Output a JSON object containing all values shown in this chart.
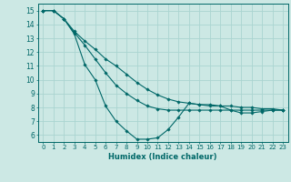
{
  "xlabel": "Humidex (Indice chaleur)",
  "background_color": "#cce8e4",
  "grid_color": "#aad4d0",
  "line_color": "#006868",
  "xlim": [
    -0.5,
    23.5
  ],
  "ylim": [
    5.5,
    15.5
  ],
  "yticks": [
    6,
    7,
    8,
    9,
    10,
    11,
    12,
    13,
    14,
    15
  ],
  "xticks": [
    0,
    1,
    2,
    3,
    4,
    5,
    6,
    7,
    8,
    9,
    10,
    11,
    12,
    13,
    14,
    15,
    16,
    17,
    18,
    19,
    20,
    21,
    22,
    23
  ],
  "xtick_labels": [
    "0",
    "1",
    "2",
    "3",
    "4",
    "5",
    "6",
    "7",
    "8",
    "9",
    "10",
    "11",
    "12",
    "13",
    "14",
    "15",
    "16",
    "17",
    "18",
    "19",
    "20",
    "21",
    "22",
    "23"
  ],
  "series": [
    {
      "x": [
        0,
        1,
        2,
        3,
        4,
        5,
        6,
        7,
        8,
        9,
        10,
        11,
        12,
        13,
        14,
        15,
        16,
        17,
        18,
        19,
        20,
        21,
        22,
        23
      ],
      "y": [
        15,
        15,
        14.4,
        13.5,
        12.8,
        12.2,
        11.5,
        11.0,
        10.4,
        9.8,
        9.3,
        8.9,
        8.6,
        8.4,
        8.3,
        8.2,
        8.2,
        8.1,
        8.1,
        8.0,
        8.0,
        7.9,
        7.9,
        7.8
      ]
    },
    {
      "x": [
        0,
        1,
        2,
        3,
        4,
        5,
        6,
        7,
        8,
        9,
        10,
        11,
        12,
        13,
        14,
        15,
        16,
        17,
        18,
        19,
        20,
        21,
        22,
        23
      ],
      "y": [
        15,
        15,
        14.4,
        13.4,
        12.5,
        11.5,
        10.5,
        9.6,
        9.0,
        8.5,
        8.1,
        7.9,
        7.8,
        7.8,
        7.8,
        7.8,
        7.8,
        7.8,
        7.8,
        7.8,
        7.8,
        7.8,
        7.8,
        7.8
      ]
    },
    {
      "x": [
        0,
        1,
        2,
        3,
        4,
        5,
        6,
        7,
        8,
        9,
        10,
        11,
        12,
        13,
        14,
        15,
        16,
        17,
        18,
        19,
        20,
        21,
        22,
        23
      ],
      "y": [
        15,
        15,
        14.4,
        13.3,
        11.1,
        10.0,
        8.1,
        7.0,
        6.3,
        5.7,
        5.7,
        5.8,
        6.4,
        7.3,
        8.3,
        8.2,
        8.1,
        8.1,
        7.8,
        7.6,
        7.6,
        7.7,
        7.8,
        7.8
      ]
    }
  ]
}
